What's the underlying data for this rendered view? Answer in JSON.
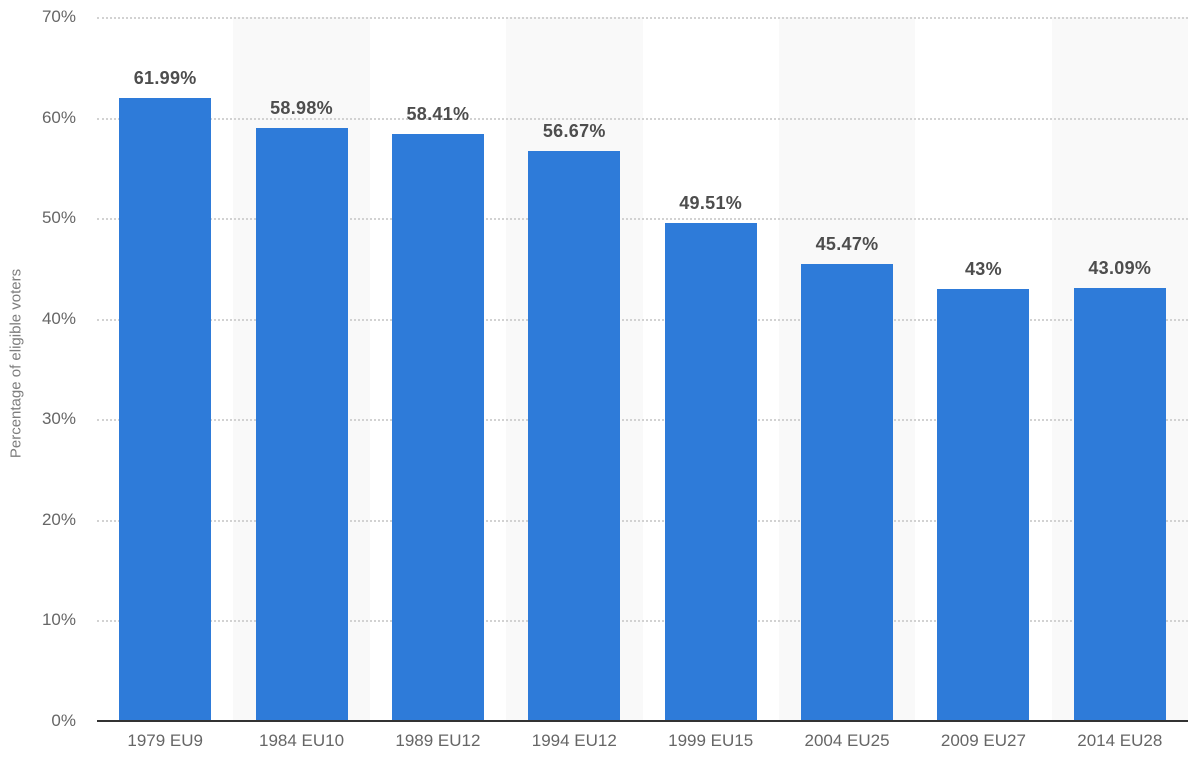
{
  "chart_data": {
    "type": "bar",
    "title": "",
    "categories": [
      "1979 EU9",
      "1984 EU10",
      "1989 EU12",
      "1994 EU12",
      "1999 EU15",
      "2004 EU25",
      "2009 EU27",
      "2014 EU28"
    ],
    "values": [
      61.99,
      58.98,
      58.41,
      56.67,
      49.51,
      45.47,
      43,
      43.09
    ],
    "value_labels": [
      "61.99%",
      "58.98%",
      "58.41%",
      "56.67%",
      "49.51%",
      "45.47%",
      "43%",
      "43.09%"
    ],
    "xlabel": "",
    "ylabel": "Percentage of eligible voters",
    "ylim": [
      0,
      70
    ],
    "yticks": [
      0,
      10,
      20,
      30,
      40,
      50,
      60,
      70
    ],
    "ytick_labels": [
      "0%",
      "10%",
      "20%",
      "30%",
      "40%",
      "50%",
      "60%",
      "70%"
    ],
    "grid": "horizontal-dotted",
    "legend": "none",
    "colors": {
      "bar": "#2e7bd9",
      "column_stripe": "#f9f9f9",
      "gridline": "#d2d2d2",
      "axis_line": "#333333",
      "tick_text": "#666666",
      "value_text": "#4d4d4d",
      "ylabel_text": "#7d7d7d",
      "background": "#ffffff"
    }
  }
}
